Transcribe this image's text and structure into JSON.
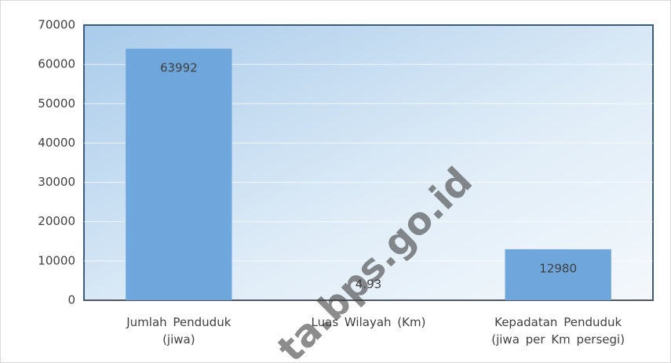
{
  "chart_data": {
    "type": "bar",
    "categories": [
      "Jumlah Penduduk (jiwa)",
      "Luas Wilayah (Km)",
      "Kepadatan Penduduk (jiwa per Km persegi)"
    ],
    "values": [
      63992,
      4.93,
      12980
    ],
    "color": "#6fa7dc",
    "ylim": [
      0,
      70000
    ],
    "yticks": [
      0,
      10000,
      20000,
      30000,
      40000,
      50000,
      60000,
      70000
    ],
    "grid": true,
    "watermark": "ta.bps.go.id"
  }
}
